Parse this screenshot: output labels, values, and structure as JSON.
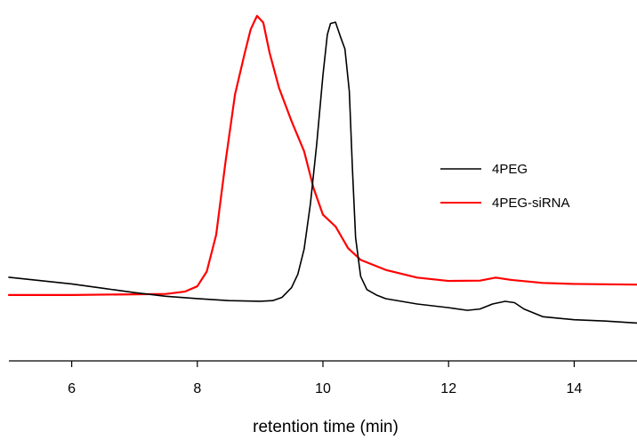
{
  "chart_data": {
    "type": "line",
    "title": "",
    "xlabel": "retention time (min)",
    "ylabel": "",
    "xlim": [
      5,
      15
    ],
    "ylim": [
      0,
      1
    ],
    "xticks": [
      6,
      8,
      10,
      12,
      14
    ],
    "grid": false,
    "legend_position": "right",
    "series": [
      {
        "name": "4PEG",
        "color": "#000000",
        "points": [
          [
            5.0,
            0.213
          ],
          [
            5.5,
            0.203
          ],
          [
            6.0,
            0.193
          ],
          [
            6.5,
            0.18
          ],
          [
            7.0,
            0.167
          ],
          [
            7.5,
            0.156
          ],
          [
            8.0,
            0.149
          ],
          [
            8.5,
            0.143
          ],
          [
            9.0,
            0.141
          ],
          [
            9.2,
            0.143
          ],
          [
            9.35,
            0.153
          ],
          [
            9.5,
            0.182
          ],
          [
            9.6,
            0.222
          ],
          [
            9.7,
            0.297
          ],
          [
            9.8,
            0.432
          ],
          [
            9.9,
            0.61
          ],
          [
            10.0,
            0.818
          ],
          [
            10.07,
            0.939
          ],
          [
            10.12,
            0.972
          ],
          [
            10.2,
            0.976
          ],
          [
            10.28,
            0.932
          ],
          [
            10.35,
            0.896
          ],
          [
            10.42,
            0.769
          ],
          [
            10.47,
            0.535
          ],
          [
            10.52,
            0.331
          ],
          [
            10.6,
            0.216
          ],
          [
            10.7,
            0.176
          ],
          [
            10.85,
            0.16
          ],
          [
            11.0,
            0.149
          ],
          [
            11.5,
            0.133
          ],
          [
            12.0,
            0.122
          ],
          [
            12.3,
            0.114
          ],
          [
            12.5,
            0.118
          ],
          [
            12.7,
            0.133
          ],
          [
            12.9,
            0.141
          ],
          [
            13.05,
            0.137
          ],
          [
            13.2,
            0.118
          ],
          [
            13.5,
            0.095
          ],
          [
            14.0,
            0.086
          ],
          [
            14.5,
            0.082
          ],
          [
            15.0,
            0.076
          ]
        ]
      },
      {
        "name": "4PEG-siRNA",
        "color": "#ff0000",
        "points": [
          [
            5.0,
            0.16
          ],
          [
            6.0,
            0.16
          ],
          [
            7.0,
            0.162
          ],
          [
            7.5,
            0.163
          ],
          [
            7.8,
            0.17
          ],
          [
            8.0,
            0.186
          ],
          [
            8.15,
            0.23
          ],
          [
            8.3,
            0.34
          ],
          [
            8.45,
            0.56
          ],
          [
            8.6,
            0.76
          ],
          [
            8.75,
            0.88
          ],
          [
            8.85,
            0.955
          ],
          [
            8.95,
            0.995
          ],
          [
            9.05,
            0.975
          ],
          [
            9.15,
            0.885
          ],
          [
            9.3,
            0.78
          ],
          [
            9.5,
            0.68
          ],
          [
            9.7,
            0.59
          ],
          [
            9.85,
            0.48
          ],
          [
            10.0,
            0.4
          ],
          [
            10.2,
            0.365
          ],
          [
            10.4,
            0.3
          ],
          [
            10.6,
            0.265
          ],
          [
            10.8,
            0.25
          ],
          [
            11.0,
            0.235
          ],
          [
            11.5,
            0.212
          ],
          [
            12.0,
            0.202
          ],
          [
            12.5,
            0.203
          ],
          [
            12.75,
            0.212
          ],
          [
            13.0,
            0.205
          ],
          [
            13.5,
            0.196
          ],
          [
            14.0,
            0.193
          ],
          [
            15.0,
            0.191
          ]
        ]
      }
    ]
  }
}
